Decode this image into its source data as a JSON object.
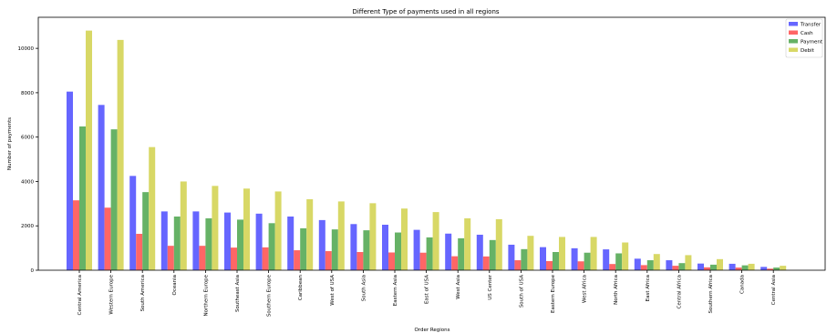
{
  "chart_data": {
    "type": "bar",
    "title": "Different Type of payments used in all regions",
    "xlabel": "Order Regions",
    "ylabel": "Number of payments",
    "ylim": [
      0,
      11400
    ],
    "yticks": [
      0,
      2000,
      4000,
      6000,
      8000,
      10000
    ],
    "grid": false,
    "legend_position": "top-right",
    "categories": [
      "Central America",
      "Western Europe",
      "South America",
      "Oceania",
      "Northern Europe",
      "Southeast Asia",
      "Southern Europe",
      "Caribbean",
      "West of USA",
      "South Asia",
      "Eastern Asia",
      "East of USA",
      "West Asia",
      "US Center",
      "South of  USA",
      "Eastern Europe",
      "West Africa",
      "North Africa",
      "East Africa",
      "Central Africa",
      "Southern Africa",
      "Canada",
      "Central Asia"
    ],
    "series": [
      {
        "name": "Transfer",
        "color": "#6666ff",
        "values": [
          8050,
          7450,
          4250,
          2650,
          2650,
          2600,
          2550,
          2420,
          2260,
          2080,
          2050,
          1820,
          1650,
          1600,
          1150,
          1040,
          990,
          940,
          520,
          450,
          300,
          290,
          150
        ]
      },
      {
        "name": "Cash",
        "color": "#ff6666",
        "values": [
          3150,
          2820,
          1640,
          1100,
          1100,
          1020,
          1030,
          900,
          860,
          820,
          800,
          790,
          630,
          620,
          450,
          410,
          400,
          280,
          230,
          200,
          130,
          120,
          70
        ]
      },
      {
        "name": "Payment",
        "color": "#66b266",
        "values": [
          6480,
          6350,
          3520,
          2420,
          2340,
          2280,
          2120,
          1890,
          1840,
          1800,
          1700,
          1480,
          1440,
          1360,
          950,
          820,
          790,
          760,
          450,
          320,
          250,
          220,
          120
        ]
      },
      {
        "name": "Debit",
        "color": "#d8d866",
        "values": [
          10800,
          10380,
          5550,
          4000,
          3800,
          3680,
          3550,
          3200,
          3100,
          3020,
          2780,
          2620,
          2340,
          2300,
          1550,
          1500,
          1500,
          1250,
          730,
          680,
          500,
          290,
          200
        ]
      }
    ]
  }
}
